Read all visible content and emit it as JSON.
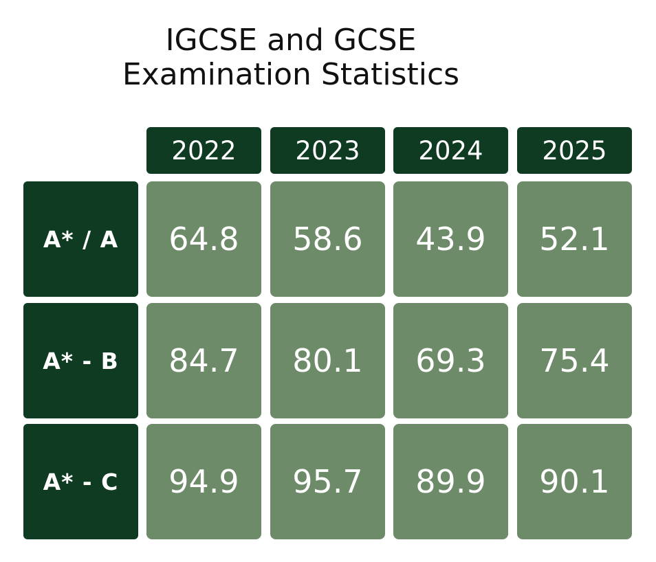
{
  "title": {
    "line1": "IGCSE and GCSE",
    "line2": "Examination Statistics"
  },
  "chart_data": {
    "type": "table",
    "title": "IGCSE and GCSE Examination Statistics",
    "columns": [
      "2022",
      "2023",
      "2024",
      "2025"
    ],
    "rows": [
      {
        "label": "A* / A",
        "values": [
          "64.8",
          "58.6",
          "43.9",
          "52.1"
        ]
      },
      {
        "label": "A* - B",
        "values": [
          "84.7",
          "80.1",
          "69.3",
          "75.4"
        ]
      },
      {
        "label": "A* - C",
        "values": [
          "94.9",
          "95.7",
          "89.9",
          "90.1"
        ]
      }
    ]
  },
  "colors": {
    "header_bg": "#0e3b22",
    "cell_bg": "#6d8b69",
    "text_light": "#ffffff",
    "title_text": "#111111"
  }
}
